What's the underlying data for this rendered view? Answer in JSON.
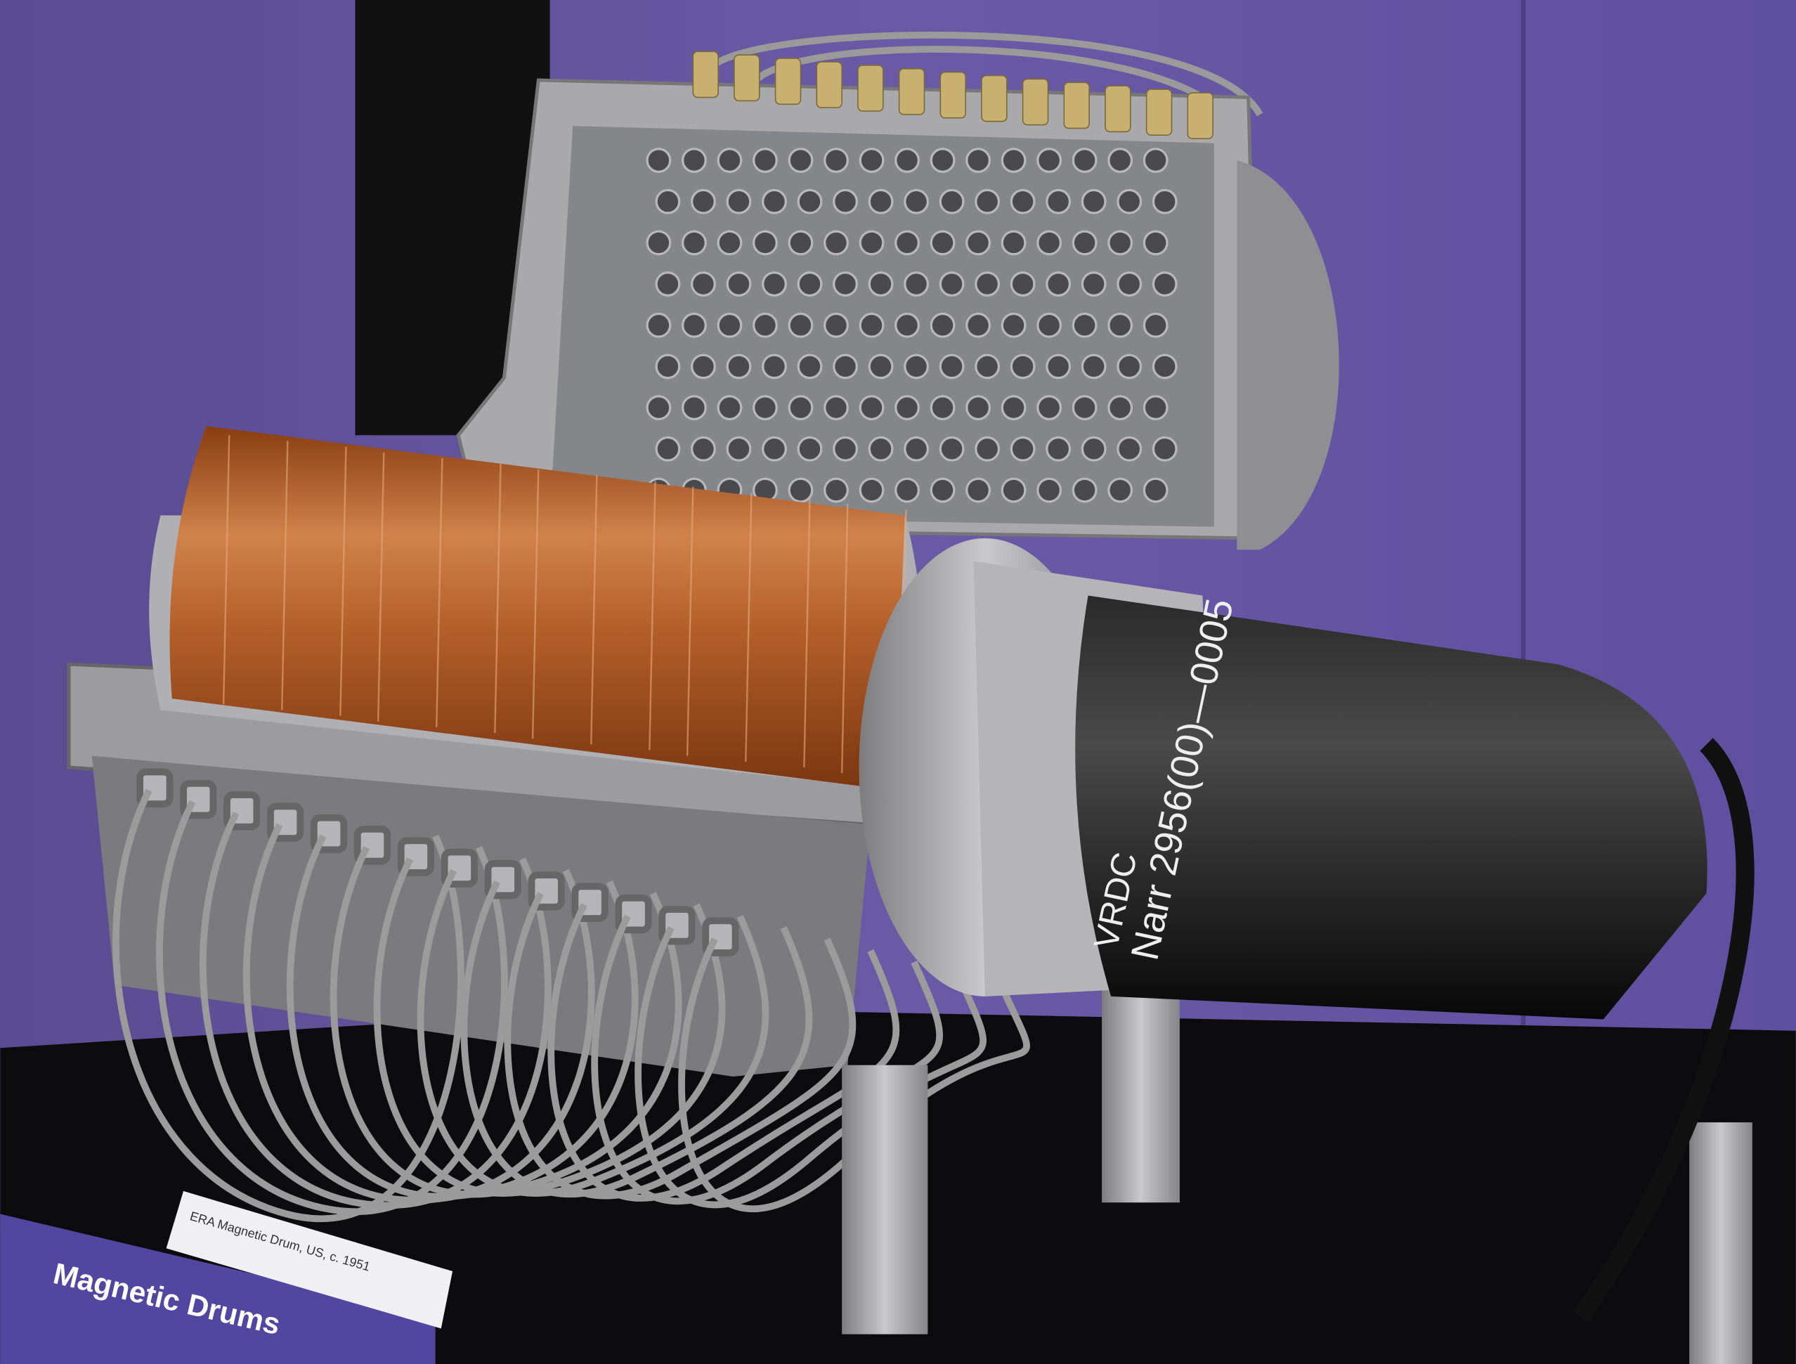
{
  "placard": {
    "title": "Magnetic Drums"
  },
  "label": {
    "caption": "ERA Magnetic Drum, US, c. 1951"
  },
  "motor": {
    "brand": "VRDC",
    "marking": "Narr 2956(00)—0005"
  }
}
